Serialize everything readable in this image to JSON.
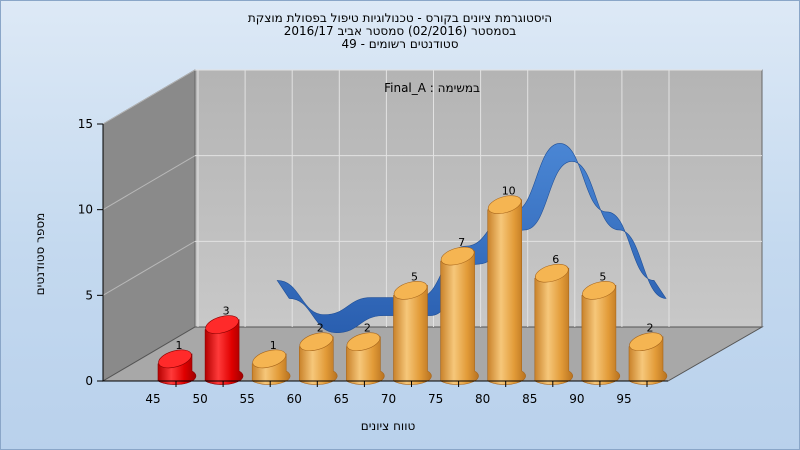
{
  "chart_data": {
    "type": "bar",
    "title_lines": [
      "היסטוגרמת ציונים בקורס - טכנולוגיות טיפול בפסולת מוצקת",
      "בסמסטר  (02/2016)  סמסטר אביב 2016/17",
      "סטודנטים רשומים - 49"
    ],
    "annotation": "במשימה : Final_A",
    "xlabel": "טווח ציונים",
    "ylabel": "מספר סטודנטים",
    "categories": [
      "45",
      "50",
      "55",
      "60",
      "65",
      "70",
      "75",
      "80",
      "85",
      "90",
      "95"
    ],
    "values": [
      1,
      3,
      1,
      2,
      2,
      5,
      7,
      10,
      6,
      5,
      2
    ],
    "y_ticks": [
      0,
      5,
      10,
      15
    ],
    "ylim": [
      0,
      15
    ],
    "grid": true,
    "series": [
      {
        "type": "histogram-columns",
        "values": [
          1,
          3,
          1,
          2,
          2,
          5,
          7,
          10,
          6,
          5,
          2
        ]
      },
      {
        "type": "smoothed-ribbon",
        "values": [
          null,
          null,
          4,
          2,
          3,
          3,
          6,
          8,
          12,
          8,
          4
        ]
      }
    ],
    "colors": {
      "fail_bar": "#e00000",
      "pass_bar": "#e7a23a",
      "ribbon": "#3a72c0",
      "wall_left": "#8a8a8a",
      "wall_back": "#bcbcbc",
      "floor": "#a8a8a8"
    },
    "fail_categories": [
      "45",
      "50"
    ]
  }
}
